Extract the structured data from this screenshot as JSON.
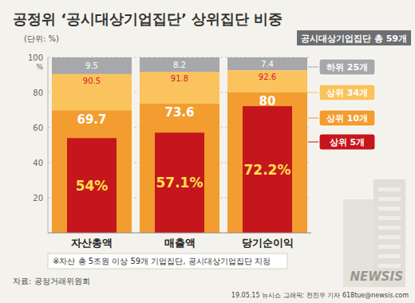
{
  "chart_data": {
    "type": "bar",
    "title": "공정위 ‘공시대상기업집단’ 상위집단 비중",
    "subtitle": "(단위: %)",
    "ylabel": "%",
    "categories": [
      "자산총액",
      "매출액",
      "당기순이익"
    ],
    "series": [
      {
        "name": "상위 5개",
        "color": "#c4161c",
        "values": [
          54,
          57.1,
          72.2
        ],
        "value_labels": [
          "54%",
          "57.1%",
          "72.2%"
        ]
      },
      {
        "name": "상위 10개",
        "color": "#f39c2f",
        "values": [
          69.7,
          73.6,
          80
        ]
      },
      {
        "name": "상위 34개",
        "color": "#fbc35d",
        "values": [
          90.5,
          91.8,
          92.6
        ]
      },
      {
        "name": "하위 25개",
        "color": "#a6a8ab",
        "type": "stack",
        "values": [
          9.5,
          8.2,
          7.4
        ]
      }
    ],
    "ylim": [
      0,
      100
    ],
    "yticks": [
      20,
      40,
      60,
      80,
      100
    ],
    "grid": true,
    "stacked": false,
    "data_labels": true,
    "legend": "right",
    "annotations": [
      "공시대상기업집단 총 59개",
      "※자산 총 5조원 이상 59개 기업집단, 공시대상기업집단 지정",
      "자료: 공정거래위원회",
      "19.05.15 뉴시스 그래픽: 전진우 기자 618tue@newsis.com",
      "NEWSIS"
    ]
  }
}
